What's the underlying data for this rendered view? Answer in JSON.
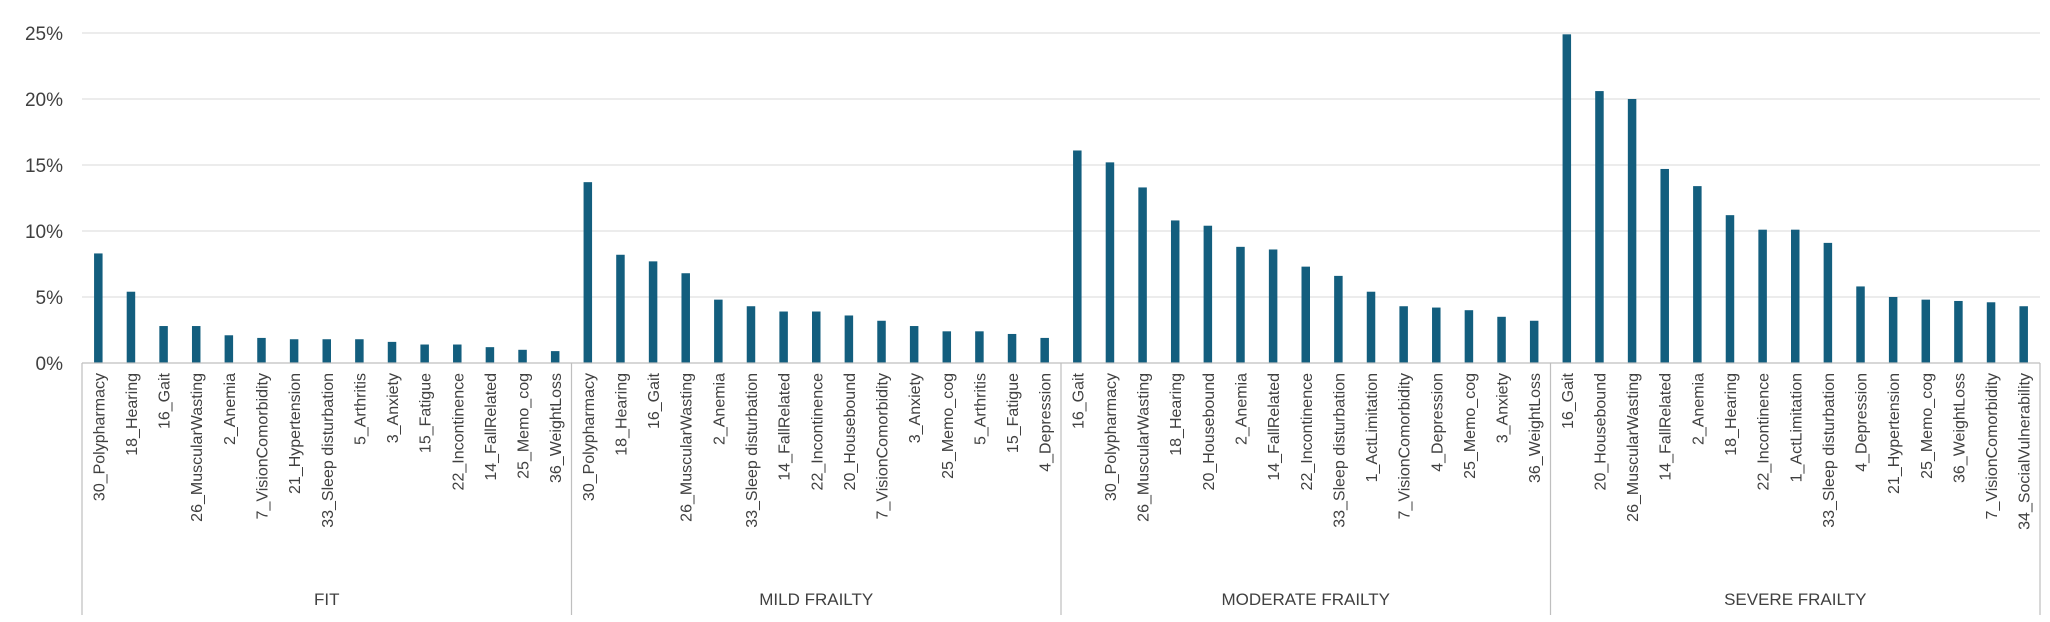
{
  "chart_data": {
    "type": "bar",
    "title": "",
    "xlabel": "",
    "ylabel": "",
    "ylim": [
      0,
      25
    ],
    "y_ticks": [
      "0%",
      "5%",
      "10%",
      "15%",
      "20%",
      "25%"
    ],
    "grid": true,
    "legend": "none",
    "bar_color": "#135e7e",
    "groups": [
      {
        "name": "FIT",
        "categories": [
          "30_Polypharmacy",
          "18_Hearing",
          "16_Gait",
          "26_MuscularWasting",
          "2_Anemia",
          "7_VisionComorbidity",
          "21_Hypertension",
          "33_Sleep disturbation",
          "5_Arthritis",
          "3_Anxiety",
          "15_Fatigue",
          "22_Incontinence",
          "14_FallRelated",
          "25_Memo_cog",
          "36_WeightLoss"
        ],
        "values": [
          8.3,
          5.4,
          2.8,
          2.8,
          2.1,
          1.9,
          1.8,
          1.8,
          1.8,
          1.6,
          1.4,
          1.4,
          1.2,
          1.0,
          0.9
        ]
      },
      {
        "name": "MILD FRAILTY",
        "categories": [
          "30_Polypharmacy",
          "18_Hearing",
          "16_Gait",
          "26_MuscularWasting",
          "2_Anemia",
          "33_Sleep disturbation",
          "14_FallRelated",
          "22_Incontinence",
          "20_Housebound",
          "7_VisionComorbidity",
          "3_Anxiety",
          "25_Memo_cog",
          "5_Arthritis",
          "15_Fatigue",
          "4_Depression"
        ],
        "values": [
          13.7,
          8.2,
          7.7,
          6.8,
          4.8,
          4.3,
          3.9,
          3.9,
          3.6,
          3.2,
          2.8,
          2.4,
          2.4,
          2.2,
          1.9
        ]
      },
      {
        "name": "MODERATE FRAILTY",
        "categories": [
          "16_Gait",
          "30_Polypharmacy",
          "26_MuscularWasting",
          "18_Hearing",
          "20_Housebound",
          "2_Anemia",
          "14_FallRelated",
          "22_Incontinence",
          "33_Sleep disturbation",
          "1_ActLimitation",
          "7_VisionComorbidity",
          "4_Depression",
          "25_Memo_cog",
          "3_Anxiety",
          "36_WeightLoss"
        ],
        "values": [
          16.1,
          15.2,
          13.3,
          10.8,
          10.4,
          8.8,
          8.6,
          7.3,
          6.6,
          5.4,
          4.3,
          4.2,
          4.0,
          3.5,
          3.2
        ]
      },
      {
        "name": "SEVERE FRAILTY",
        "categories": [
          "16_Gait",
          "20_Housebound",
          "26_MuscularWasting",
          "14_FallRelated",
          "2_Anemia",
          "18_Hearing",
          "22_Incontinence",
          "1_ActLimitation",
          "33_Sleep disturbation",
          "4_Depression",
          "21_Hypertension",
          "25_Memo_cog",
          "36_WeightLoss",
          "7_VisionComorbidity",
          "34_SocialVulnerability"
        ],
        "values": [
          24.9,
          20.6,
          20.0,
          14.7,
          13.4,
          11.2,
          10.1,
          10.1,
          9.1,
          5.8,
          5.0,
          4.8,
          4.7,
          4.6,
          4.3
        ]
      }
    ]
  }
}
